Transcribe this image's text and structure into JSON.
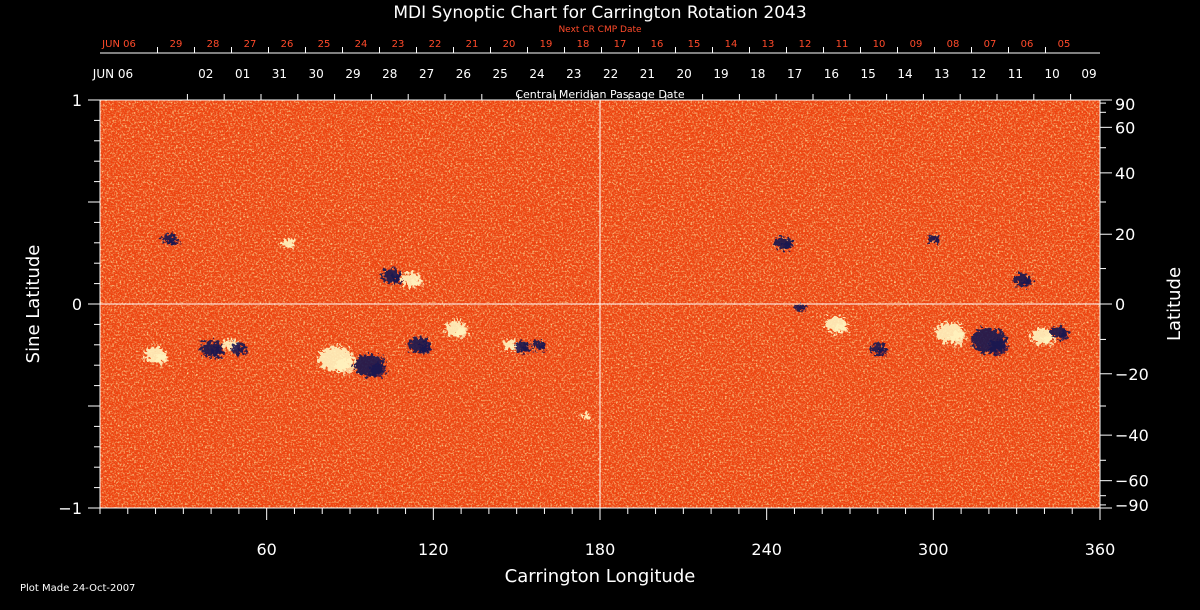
{
  "title": "MDI Synoptic Chart for Carrington Rotation 2043",
  "top_axis_next": {
    "label": "Next CR CMP Date",
    "labels": [
      "JUN 06",
      "29",
      "28",
      "27",
      "26",
      "25",
      "24",
      "23",
      "22",
      "21",
      "20",
      "19",
      "18",
      "17",
      "16",
      "15",
      "14",
      "13",
      "12",
      "11",
      "10",
      "09",
      "08",
      "07",
      "06",
      "05"
    ]
  },
  "top_axis_cmp": {
    "label": "Central Meridian Passage Date",
    "labels": [
      "JUN 06",
      "02",
      "01",
      "31",
      "30",
      "29",
      "28",
      "27",
      "26",
      "25",
      "24",
      "23",
      "22",
      "21",
      "20",
      "19",
      "18",
      "17",
      "16",
      "15",
      "14",
      "13",
      "12",
      "11",
      "10",
      "09"
    ]
  },
  "footer": "Plot Made 24-Oct-2007",
  "colors": {
    "background": "#000000",
    "map_base": "#ee4410",
    "positive_polarity": "#fff4c0",
    "negative_polarity": "#1a1450",
    "next_cr_axis": "#ff4a2a",
    "text": "#ffffff"
  },
  "chart_data": {
    "type": "heatmap",
    "title": "MDI Synoptic Chart for Carrington Rotation 2043",
    "xlabel": "Carrington Longitude",
    "ylabel_left": "Sine Latitude",
    "ylabel_right": "Latitude",
    "xlim": [
      0,
      360
    ],
    "ylim": [
      -1,
      1
    ],
    "x_ticks": [
      60,
      120,
      180,
      240,
      300,
      360
    ],
    "x_tick_labels": [
      "60",
      "120",
      "180",
      "240",
      "300",
      "360"
    ],
    "y_ticks_left": [
      -1,
      0,
      1
    ],
    "y_tick_labels_left": [
      "−1",
      "0",
      "1"
    ],
    "y_ticks_right_deg": [
      90,
      60,
      40,
      20,
      0,
      -20,
      -40,
      -60,
      -90
    ],
    "y_tick_labels_right": [
      "90",
      "60",
      "40",
      "20",
      "0",
      "−20",
      "−40",
      "−60",
      "−90"
    ],
    "reference_lines": {
      "longitude": 180,
      "sine_latitude": 0
    },
    "grid": false,
    "active_regions": [
      {
        "lon": 20,
        "sinlat": -0.25,
        "polarity": "positive",
        "size": 1.0
      },
      {
        "lon": 40,
        "sinlat": -0.22,
        "polarity": "negative",
        "size": 1.0
      },
      {
        "lon": 47,
        "sinlat": -0.2,
        "polarity": "positive",
        "size": 0.7
      },
      {
        "lon": 50,
        "sinlat": -0.22,
        "polarity": "negative",
        "size": 0.7
      },
      {
        "lon": 25,
        "sinlat": 0.32,
        "polarity": "negative",
        "size": 0.7
      },
      {
        "lon": 68,
        "sinlat": 0.3,
        "polarity": "positive",
        "size": 0.6
      },
      {
        "lon": 85,
        "sinlat": -0.27,
        "polarity": "positive",
        "size": 1.6
      },
      {
        "lon": 97,
        "sinlat": -0.3,
        "polarity": "negative",
        "size": 1.4
      },
      {
        "lon": 105,
        "sinlat": 0.14,
        "polarity": "negative",
        "size": 0.9
      },
      {
        "lon": 112,
        "sinlat": 0.12,
        "polarity": "positive",
        "size": 0.9
      },
      {
        "lon": 115,
        "sinlat": -0.2,
        "polarity": "negative",
        "size": 1.0
      },
      {
        "lon": 128,
        "sinlat": -0.12,
        "polarity": "positive",
        "size": 1.0
      },
      {
        "lon": 148,
        "sinlat": -0.2,
        "polarity": "positive",
        "size": 0.7
      },
      {
        "lon": 152,
        "sinlat": -0.21,
        "polarity": "negative",
        "size": 0.7
      },
      {
        "lon": 158,
        "sinlat": -0.2,
        "polarity": "negative",
        "size": 0.6
      },
      {
        "lon": 246,
        "sinlat": 0.3,
        "polarity": "negative",
        "size": 0.8
      },
      {
        "lon": 252,
        "sinlat": -0.02,
        "polarity": "negative",
        "size": 0.5
      },
      {
        "lon": 265,
        "sinlat": -0.1,
        "polarity": "positive",
        "size": 1.0
      },
      {
        "lon": 280,
        "sinlat": -0.22,
        "polarity": "negative",
        "size": 0.7
      },
      {
        "lon": 300,
        "sinlat": 0.32,
        "polarity": "negative",
        "size": 0.5
      },
      {
        "lon": 306,
        "sinlat": -0.14,
        "polarity": "positive",
        "size": 1.3
      },
      {
        "lon": 320,
        "sinlat": -0.18,
        "polarity": "negative",
        "size": 1.6
      },
      {
        "lon": 332,
        "sinlat": 0.12,
        "polarity": "negative",
        "size": 0.8
      },
      {
        "lon": 339,
        "sinlat": -0.16,
        "polarity": "positive",
        "size": 1.0
      },
      {
        "lon": 345,
        "sinlat": -0.14,
        "polarity": "negative",
        "size": 0.8
      },
      {
        "lon": 175,
        "sinlat": -0.55,
        "polarity": "positive",
        "size": 0.4
      }
    ]
  }
}
